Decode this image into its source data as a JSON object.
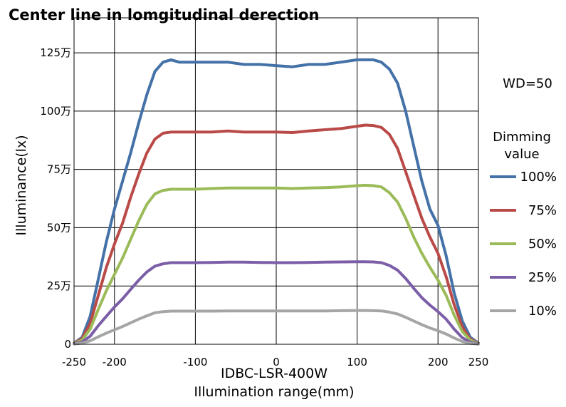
{
  "chart_data": {
    "type": "line",
    "title": "Center line in lomgitudinal derection",
    "xlabel": [
      "IDBC-LSR-400W",
      "Illumination range(mm)"
    ],
    "ylabel": "Illuminance(lx)",
    "annotation": "WD=50",
    "legend_title": [
      "Dimming",
      "value"
    ],
    "legend_position": "right",
    "grid": true,
    "xlim": [
      -250,
      250
    ],
    "ylim": [
      0,
      1400000
    ],
    "x_ticks": [
      -250,
      -200,
      -100,
      0,
      100,
      200,
      250
    ],
    "x_tick_labels": [
      "-250",
      "-200",
      "-100",
      "0",
      "100",
      "200",
      "250"
    ],
    "y_ticks": [
      0,
      250000,
      500000,
      750000,
      1000000,
      1250000
    ],
    "y_tick_labels": [
      "0",
      "25万",
      "50万",
      "75万",
      "100万",
      "125万"
    ],
    "x": [
      -250,
      -240,
      -230,
      -220,
      -210,
      -200,
      -190,
      -180,
      -170,
      -160,
      -150,
      -140,
      -130,
      -120,
      -110,
      -100,
      -80,
      -60,
      -40,
      -20,
      0,
      20,
      40,
      60,
      80,
      100,
      110,
      120,
      130,
      140,
      150,
      160,
      170,
      180,
      190,
      200,
      210,
      220,
      230,
      240,
      250
    ],
    "series": [
      {
        "name": "100%",
        "color": "#4472a8",
        "values": [
          5000,
          30000,
          120000,
          280000,
          440000,
          580000,
          700000,
          820000,
          950000,
          1070000,
          1170000,
          1210000,
          1220000,
          1210000,
          1210000,
          1210000,
          1210000,
          1210000,
          1200000,
          1200000,
          1195000,
          1190000,
          1200000,
          1200000,
          1210000,
          1220000,
          1220000,
          1220000,
          1210000,
          1180000,
          1120000,
          1000000,
          850000,
          700000,
          580000,
          510000,
          380000,
          220000,
          100000,
          30000,
          5000
        ]
      },
      {
        "name": "75%",
        "color": "#b94a48",
        "values": [
          4000,
          25000,
          90000,
          210000,
          330000,
          430000,
          520000,
          630000,
          730000,
          820000,
          880000,
          905000,
          910000,
          910000,
          910000,
          910000,
          910000,
          915000,
          910000,
          910000,
          910000,
          908000,
          915000,
          920000,
          925000,
          935000,
          940000,
          938000,
          930000,
          900000,
          840000,
          740000,
          640000,
          540000,
          460000,
          390000,
          290000,
          170000,
          75000,
          22000,
          4000
        ]
      },
      {
        "name": "50%",
        "color": "#9bbb59",
        "values": [
          3000,
          18000,
          65000,
          150000,
          230000,
          300000,
          370000,
          450000,
          530000,
          600000,
          645000,
          660000,
          665000,
          665000,
          665000,
          665000,
          668000,
          670000,
          670000,
          670000,
          670000,
          668000,
          670000,
          672000,
          675000,
          680000,
          682000,
          680000,
          675000,
          650000,
          610000,
          540000,
          460000,
          390000,
          330000,
          275000,
          210000,
          125000,
          55000,
          17000,
          3000
        ]
      },
      {
        "name": "25%",
        "color": "#7b5ea7",
        "values": [
          2000,
          10000,
          35000,
          80000,
          120000,
          160000,
          195000,
          235000,
          275000,
          310000,
          335000,
          345000,
          350000,
          350000,
          350000,
          350000,
          351000,
          352000,
          352000,
          351000,
          350000,
          350000,
          351000,
          352000,
          353000,
          354000,
          354000,
          353000,
          350000,
          338000,
          318000,
          282000,
          240000,
          200000,
          168000,
          140000,
          108000,
          65000,
          28000,
          9000,
          2000
        ]
      },
      {
        "name": "10%",
        "color": "#a5a5a5",
        "values": [
          1000,
          5000,
          15000,
          32000,
          48000,
          62000,
          76000,
          92000,
          108000,
          122000,
          135000,
          140000,
          142000,
          142000,
          142000,
          142000,
          142000,
          143000,
          143000,
          143000,
          143000,
          143000,
          143000,
          143000,
          144000,
          145000,
          145000,
          144000,
          143000,
          138000,
          130000,
          116000,
          100000,
          84000,
          70000,
          58000,
          44000,
          27000,
          12000,
          4000,
          1000
        ]
      }
    ]
  }
}
